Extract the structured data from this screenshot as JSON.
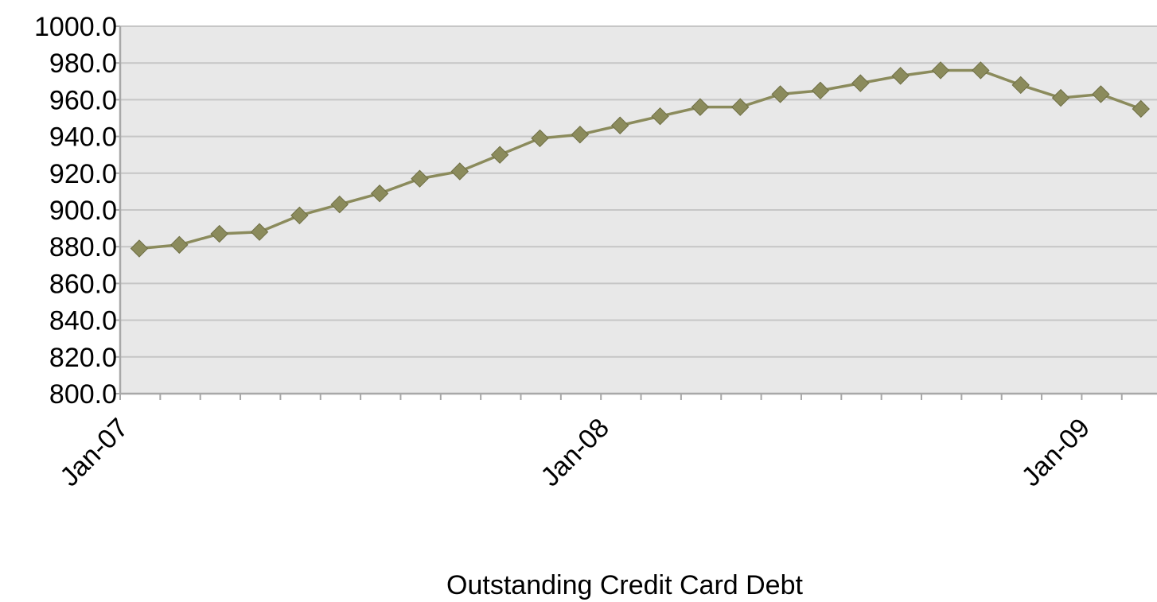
{
  "chart_data": {
    "type": "line",
    "title": "",
    "xlabel": "Outstanding Credit Card Debt",
    "ylabel": "",
    "ylim": [
      800,
      1000
    ],
    "y_ticks": [
      "800.0",
      "820.0",
      "840.0",
      "860.0",
      "880.0",
      "900.0",
      "920.0",
      "940.0",
      "960.0",
      "980.0",
      "1000.0"
    ],
    "x_tick_labels": [
      "Jan-07",
      "Jan-08",
      "Jan-09"
    ],
    "x": [
      "2007-01",
      "2007-02",
      "2007-03",
      "2007-04",
      "2007-05",
      "2007-06",
      "2007-07",
      "2007-08",
      "2007-09",
      "2007-10",
      "2007-11",
      "2007-12",
      "2008-01",
      "2008-02",
      "2008-03",
      "2008-04",
      "2008-05",
      "2008-06",
      "2008-07",
      "2008-08",
      "2008-09",
      "2008-10",
      "2008-11",
      "2008-12",
      "2009-01",
      "2009-02"
    ],
    "series": [
      {
        "values": [
          879,
          881,
          887,
          888,
          897,
          903,
          909,
          917,
          921,
          930,
          939,
          941,
          946,
          951,
          956,
          956,
          963,
          965,
          969,
          973,
          976,
          976,
          968,
          961,
          963,
          955
        ],
        "color": "#8b8b5c",
        "marker": "diamond"
      }
    ],
    "grid": true,
    "legend": "none",
    "colors": {
      "plot_bg": "#e8e8e8",
      "gridline": "#c6c6c6",
      "axis": "#a8a8a8"
    }
  }
}
